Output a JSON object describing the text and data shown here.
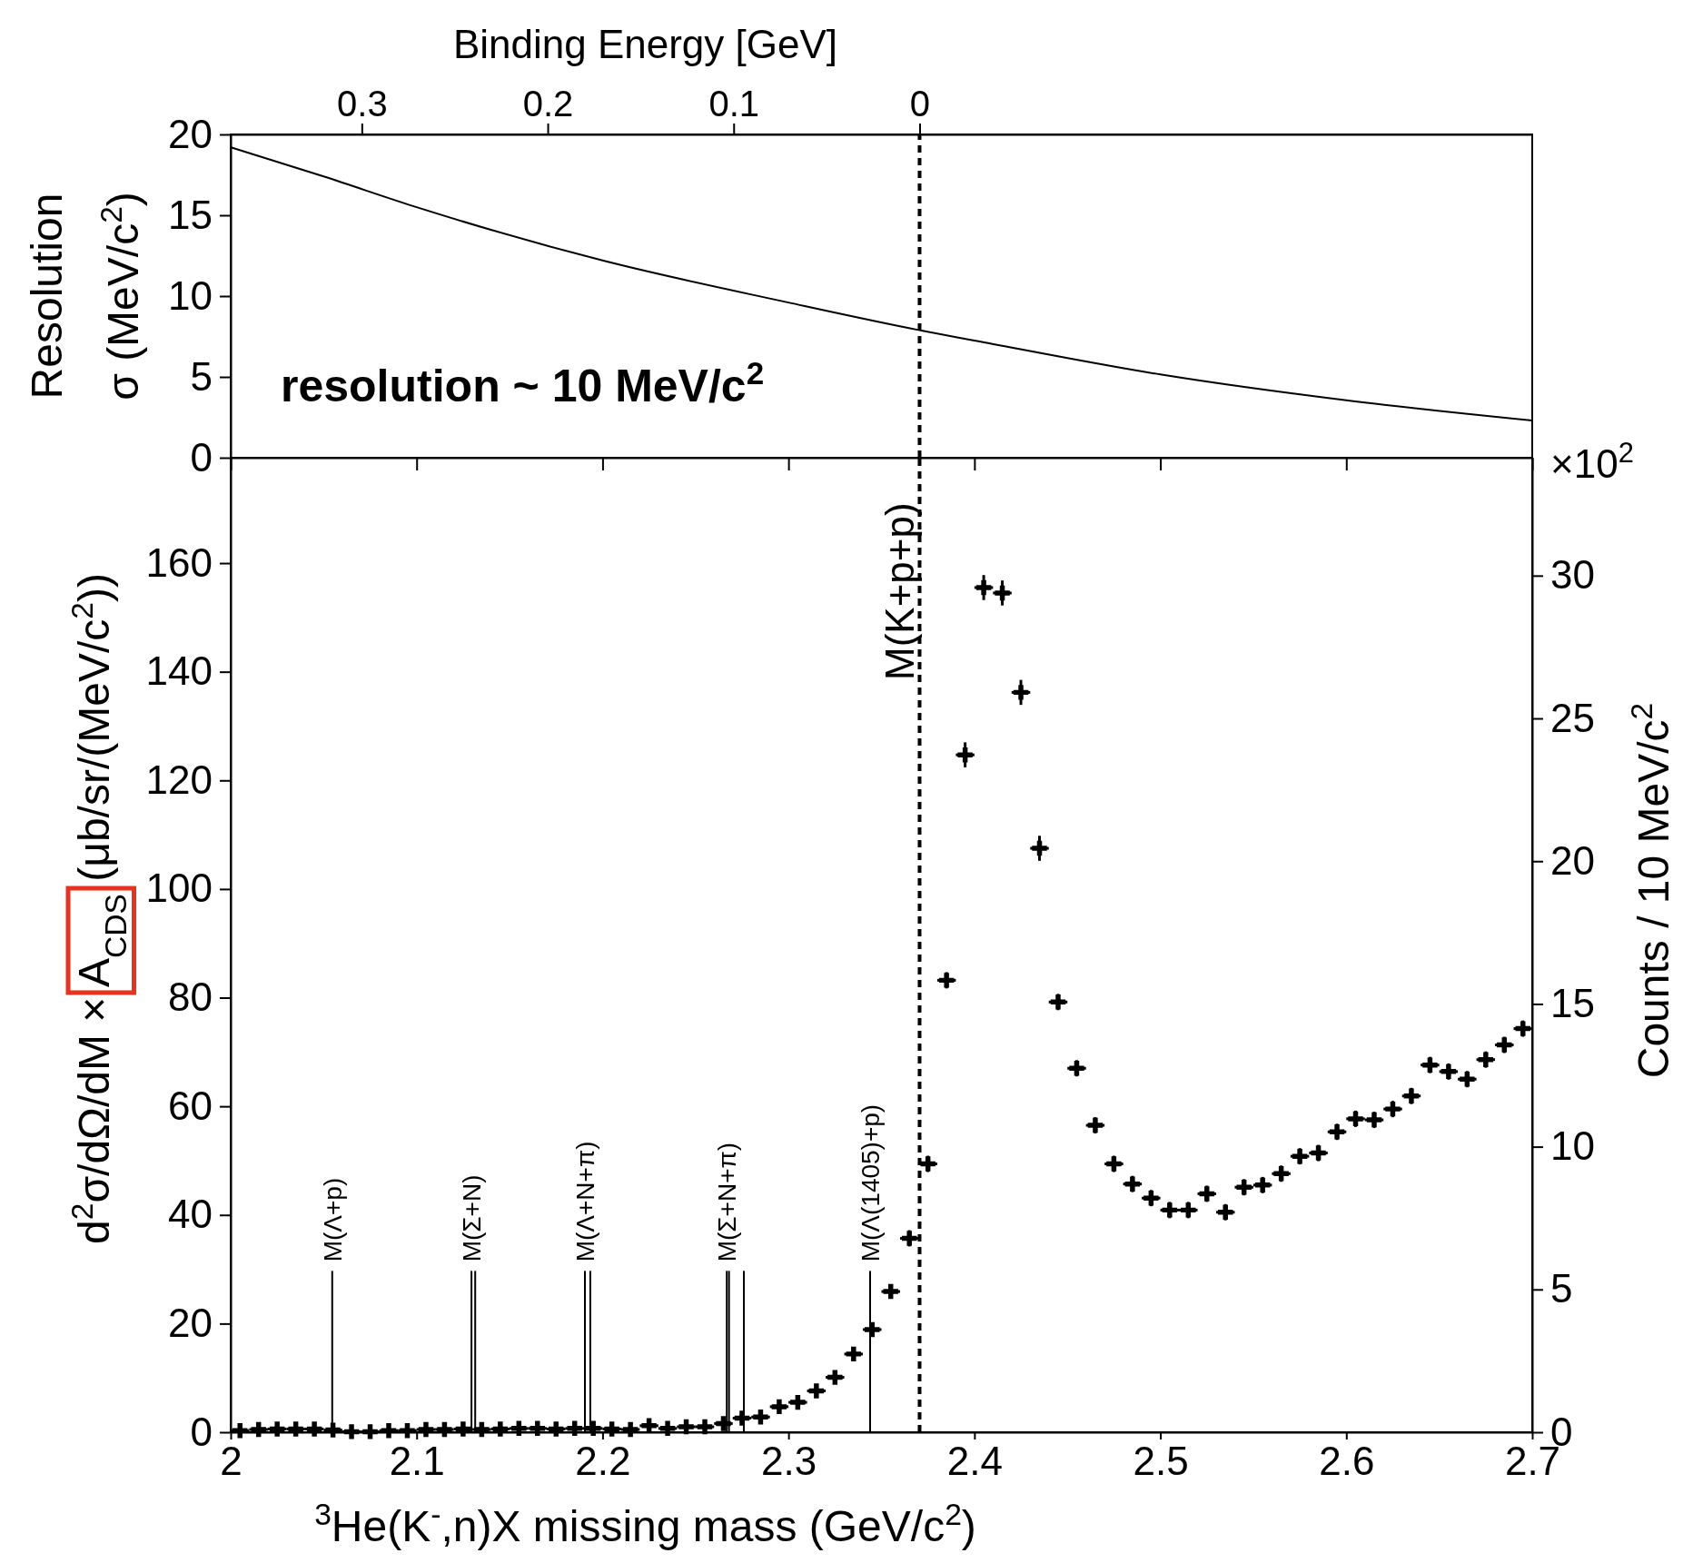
{
  "chart_data": [
    {
      "type": "line",
      "x2label": "Binding Energy [GeV]",
      "ylabel": "Resolution\nσ (MeV/c$^{2}$)",
      "xlim": [
        2,
        2.7
      ],
      "xticks": [
        {
          "value": 2,
          "label": null
        },
        {
          "value": 2.1,
          "label": null
        },
        {
          "value": 2.2,
          "label": null
        },
        {
          "value": 2.3,
          "label": null
        },
        {
          "value": 2.4,
          "label": null
        },
        {
          "value": 2.5,
          "label": null
        },
        {
          "value": 2.6,
          "label": null
        },
        {
          "value": 2.7,
          "label": null
        }
      ],
      "x2lim": [
        0.3705,
        -0.3295
      ],
      "x2ticks": [
        0.3,
        0.2,
        0.1,
        0
      ],
      "ylim": [
        0,
        20
      ],
      "yticks": [
        0,
        5,
        10,
        15,
        20
      ],
      "tick_labels": "y",
      "series": [
        {
          "color": "#000000",
          "x": [
            2,
            2.05,
            2.1,
            2.2,
            2.3,
            2.37,
            2.4,
            2.5,
            2.6,
            2.7
          ],
          "values": [
            19.2,
            17.4,
            15.5,
            12.2,
            9.6,
            7.9,
            7.25,
            5.15,
            3.55,
            2.3
          ]
        }
      ],
      "ref_lines": [
        {
          "axis": "x",
          "value": 2.3705,
          "line_style": "dashed"
        }
      ],
      "annotations": [
        "resolution ~ 10 MeV/c$^{2}$"
      ]
    },
    {
      "type": "scatter",
      "xlabel": "$^{3}$He(K$^{-}$,n)X missing mass (GeV/c$^{2}$)",
      "ylabel": "d$^{2}$σ/dΩ/dM × A$_{CDS}$ (μb/sr/(MeV/c$^{2}$))",
      "y2label": "Counts / 10 MeV/c$^{2}$",
      "xlim": [
        2,
        2.7
      ],
      "xticks": [
        2,
        2.1,
        2.2,
        2.3,
        2.4,
        2.5,
        2.6,
        2.7
      ],
      "ylim": [
        0,
        179.4
      ],
      "yticks": [
        0,
        20,
        40,
        60,
        80,
        100,
        120,
        140,
        160
      ],
      "y2lim": [
        0,
        34.13
      ],
      "y2ticks": [
        0,
        5,
        10,
        15,
        20,
        25,
        30
      ],
      "marker": "cross",
      "series": [
        {
          "type": "line",
          "marker": "none",
          "name": "M(Λ+p)",
          "color": "#000000",
          "x": [
            2.0546,
            2.0546
          ],
          "values": [
            0,
            29.7
          ]
        },
        {
          "type": "line",
          "marker": "none",
          "name": "M(Σ+N)",
          "color": "#000000",
          "x": [
            2.1295,
            2.1295
          ],
          "values": [
            0,
            29.7
          ]
        },
        {
          "type": "line",
          "marker": "none",
          "color": "#000000",
          "x": [
            2.1315,
            2.1315
          ],
          "values": [
            0,
            29.7
          ]
        },
        {
          "type": "line",
          "marker": "none",
          "name": "M(Λ+N+π)",
          "color": "#000000",
          "x": [
            2.1905,
            2.1905
          ],
          "values": [
            0,
            29.7
          ]
        },
        {
          "type": "line",
          "marker": "none",
          "color": "#000000",
          "x": [
            2.1934,
            2.1934
          ],
          "values": [
            0,
            29.7
          ]
        },
        {
          "type": "line",
          "marker": "none",
          "name": "M(Σ+N+π)",
          "color": "#000000",
          "x": [
            2.2668,
            2.2668
          ],
          "values": [
            0,
            29.7
          ]
        },
        {
          "type": "line",
          "marker": "none",
          "color": "#000000",
          "x": [
            2.268,
            2.268
          ],
          "values": [
            0,
            29.7
          ]
        },
        {
          "type": "line",
          "marker": "none",
          "color": "#000000",
          "x": [
            2.276,
            2.276
          ],
          "values": [
            0,
            29.7
          ]
        },
        {
          "type": "line",
          "marker": "none",
          "name": "M(Λ(1405)+p)",
          "color": "#000000",
          "x": [
            2.3439,
            2.3439
          ],
          "values": [
            0,
            29.7
          ]
        },
        {
          "color": "#000000",
          "x": [
            2.005,
            2.015,
            2.025,
            2.035,
            2.045,
            2.055,
            2.065,
            2.075,
            2.085,
            2.095,
            2.105,
            2.115,
            2.125,
            2.135,
            2.145,
            2.155,
            2.165,
            2.175,
            2.185,
            2.195,
            2.205,
            2.215,
            2.225,
            2.235,
            2.245,
            2.255,
            2.265,
            2.275,
            2.285,
            2.295,
            2.305,
            2.315,
            2.325,
            2.335,
            2.345,
            2.355,
            2.365,
            2.375,
            2.385,
            2.395,
            2.405,
            2.415,
            2.425,
            2.435,
            2.445,
            2.455,
            2.465,
            2.475,
            2.485,
            2.495,
            2.505,
            2.515,
            2.525,
            2.535,
            2.545,
            2.555,
            2.565,
            2.575,
            2.585,
            2.595,
            2.605,
            2.615,
            2.625,
            2.635,
            2.645,
            2.655,
            2.665,
            2.675,
            2.685,
            2.695
          ],
          "values": [
            0.3,
            0.5,
            0.6,
            0.6,
            0.6,
            0.4,
            0.1,
            0.1,
            0.3,
            0.3,
            0.5,
            0.5,
            0.6,
            0.5,
            0.6,
            0.7,
            0.7,
            0.6,
            0.7,
            0.7,
            0.6,
            0.5,
            1.2,
            0.7,
            1.0,
            1.0,
            1.6,
            2.6,
            2.8,
            4.7,
            5.5,
            7.6,
            10.1,
            14.4,
            18.9,
            25.9,
            35.7,
            49.4,
            83.2,
            124.7,
            155.5,
            154.5,
            136.2,
            107.5,
            79.2,
            67.0,
            56.5,
            49.4,
            45.7,
            43.1,
            40.9,
            40.9,
            43.9,
            40.5,
            45.1,
            45.5,
            47.6,
            50.8,
            51.4,
            55.3,
            57.7,
            57.5,
            59.5,
            61.9,
            67.6,
            66.4,
            65.0,
            68.6,
            71.3,
            74.3
          ],
          "errors": [
            0.1,
            0.1,
            0.1,
            0.1,
            0.1,
            0.1,
            0.1,
            0.1,
            0.1,
            0.1,
            0.1,
            0.1,
            0.1,
            0.1,
            0.1,
            0.1,
            0.1,
            0.1,
            0.1,
            0.1,
            0.1,
            0.1,
            0.1,
            0.1,
            0.1,
            0.1,
            0.1,
            0.1,
            0.1,
            0.1,
            0.8,
            0.8,
            0.8,
            0.8,
            0.8,
            0.8,
            1.5,
            1.5,
            1.5,
            2.3,
            2.3,
            2.3,
            2.3,
            2.3,
            1.5,
            1.5,
            1.5,
            1.5,
            1.5,
            1.5,
            1.5,
            1.5,
            1.5,
            1.5,
            1.5,
            1.5,
            1.5,
            1.5,
            1.5,
            1.5,
            1.5,
            1.5,
            1.5,
            1.5,
            1.5,
            1.5,
            1.5,
            1.5,
            1.5,
            1.5
          ],
          "xerrors": [
            0.005,
            0.005,
            0.005,
            0.005,
            0.005,
            0.005,
            0.005,
            0.005,
            0.005,
            0.005,
            0.005,
            0.005,
            0.005,
            0.005,
            0.005,
            0.005,
            0.005,
            0.005,
            0.005,
            0.005,
            0.005,
            0.005,
            0.005,
            0.005,
            0.005,
            0.005,
            0.005,
            0.005,
            0.005,
            0.005,
            0.005,
            0.005,
            0.005,
            0.005,
            0.005,
            0.005,
            0.005,
            0.005,
            0.005,
            0.005,
            0.005,
            0.005,
            0.005,
            0.005,
            0.005,
            0.005,
            0.005,
            0.005,
            0.005,
            0.005,
            0.005,
            0.005,
            0.005,
            0.005,
            0.005,
            0.005,
            0.005,
            0.005,
            0.005,
            0.005,
            0.005,
            0.005,
            0.005,
            0.005,
            0.005,
            0.005,
            0.005,
            0.005,
            0.005,
            0.005
          ]
        }
      ],
      "ref_lines": [
        {
          "axis": "x",
          "value": 2.3705,
          "label": "M(K+p+p)",
          "line_style": "dashed"
        }
      ],
      "annotations": [
        "×10$^{2}$"
      ]
    }
  ]
}
